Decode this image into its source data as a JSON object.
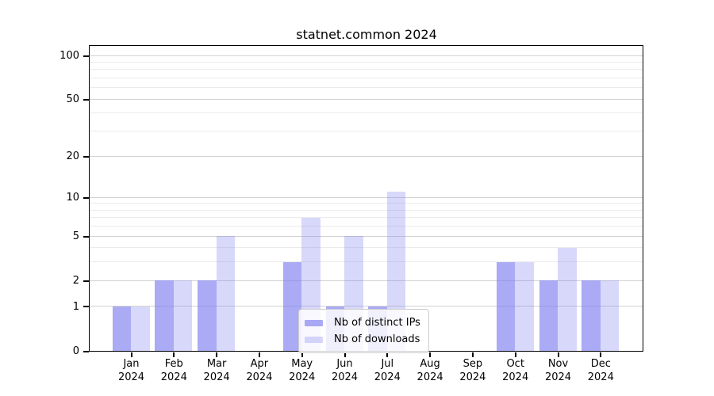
{
  "chart_data": {
    "type": "bar",
    "title": "statnet.common 2024",
    "categories": [
      "Jan",
      "Feb",
      "Mar",
      "Apr",
      "May",
      "Jun",
      "Jul",
      "Aug",
      "Sep",
      "Oct",
      "Nov",
      "Dec"
    ],
    "x_year_line": "2024",
    "series": [
      {
        "name": "Nb of distinct IPs",
        "color": "#7d7df0",
        "fill_opacity": 0.65,
        "values": [
          1,
          2,
          2,
          0,
          3,
          1,
          1,
          0,
          0,
          3,
          2,
          2
        ]
      },
      {
        "name": "Nb of downloads",
        "color": "#7d7df0",
        "fill_opacity": 0.3,
        "values": [
          1,
          2,
          5,
          0,
          7,
          5,
          11,
          0,
          0,
          3,
          4,
          2
        ]
      }
    ],
    "y_axis": {
      "scale": "log1p",
      "tick_labels": [
        0,
        1,
        2,
        5,
        10,
        20,
        50,
        100
      ],
      "minor_gridlines": [
        3,
        4,
        6,
        7,
        8,
        9,
        30,
        40,
        60,
        70,
        80,
        90
      ],
      "ylim": [
        0,
        117
      ]
    },
    "legend": {
      "position": "lower center"
    },
    "colors": {
      "background": "#ffffff",
      "axis": "#000000",
      "grid_major": "#d2d2d2",
      "grid_minor": "#ebebeb",
      "tick_label": "#000000"
    }
  }
}
